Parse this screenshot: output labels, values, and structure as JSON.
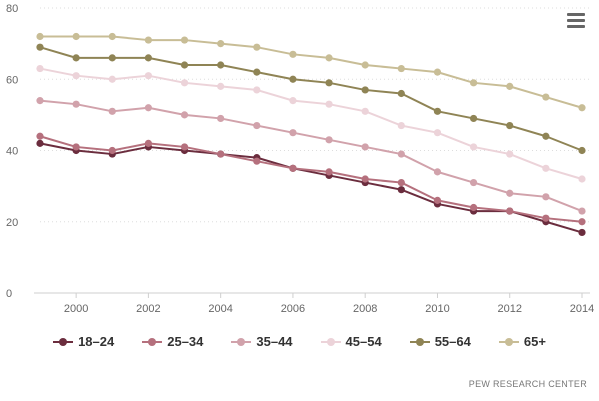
{
  "chart_data": {
    "type": "line",
    "x": [
      1999,
      2000,
      2001,
      2002,
      2003,
      2004,
      2005,
      2006,
      2007,
      2008,
      2009,
      2010,
      2011,
      2012,
      2013,
      2014
    ],
    "x_ticks": [
      "2000",
      "2002",
      "2004",
      "2006",
      "2008",
      "2010",
      "2012",
      "2014"
    ],
    "y_ticks": [
      "0",
      "20",
      "40",
      "60",
      "80"
    ],
    "xlim": [
      1999,
      2014
    ],
    "ylim": [
      0,
      80
    ],
    "grid": true,
    "legend_position": "bottom",
    "series": [
      {
        "name": "18–24",
        "color": "#6b2d3e",
        "values": [
          42,
          40,
          39,
          41,
          40,
          39,
          38,
          35,
          33,
          31,
          29,
          25,
          23,
          23,
          20,
          17
        ]
      },
      {
        "name": "25–34",
        "color": "#b5707d",
        "values": [
          44,
          41,
          40,
          42,
          41,
          39,
          37,
          35,
          34,
          32,
          31,
          26,
          24,
          23,
          21,
          20
        ]
      },
      {
        "name": "35–44",
        "color": "#d1a2ab",
        "values": [
          54,
          53,
          51,
          52,
          50,
          49,
          47,
          45,
          43,
          41,
          39,
          34,
          31,
          28,
          27,
          23
        ]
      },
      {
        "name": "45–54",
        "color": "#ecd3d9",
        "values": [
          63,
          61,
          60,
          61,
          59,
          58,
          57,
          54,
          53,
          51,
          47,
          45,
          41,
          39,
          35,
          32
        ]
      },
      {
        "name": "55–64",
        "color": "#8f8455",
        "values": [
          69,
          66,
          66,
          66,
          64,
          64,
          62,
          60,
          59,
          57,
          56,
          51,
          49,
          47,
          44,
          40
        ]
      },
      {
        "name": "65+",
        "color": "#c8bd96",
        "values": [
          72,
          72,
          72,
          71,
          71,
          70,
          69,
          67,
          66,
          64,
          63,
          62,
          59,
          58,
          55,
          52
        ]
      }
    ]
  },
  "credits": "PEW RESEARCH CENTER",
  "menu_icon": "hamburger-menu-icon"
}
